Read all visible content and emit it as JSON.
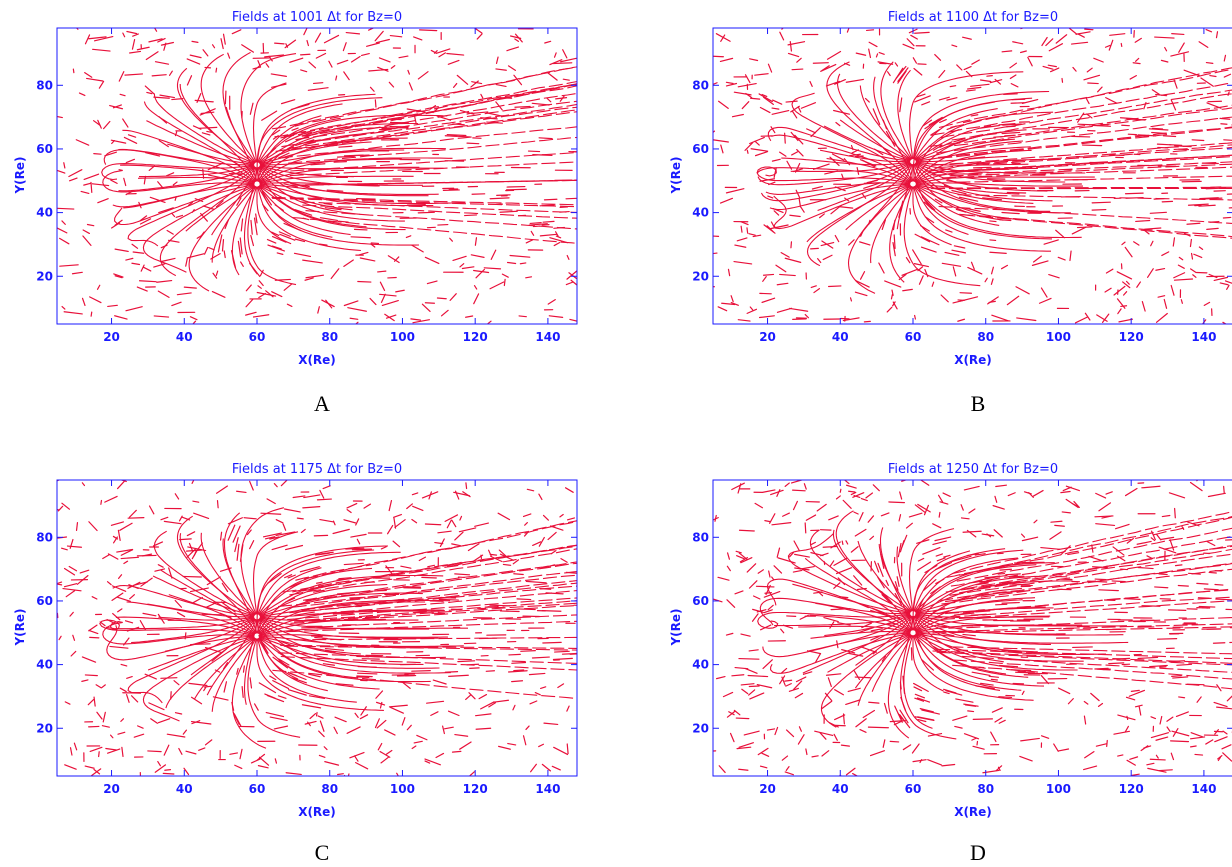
{
  "colors": {
    "axis": "#1a1aff",
    "field": "#e8103a",
    "caption": "#000000"
  },
  "chart_data": [
    {
      "type": "vector_field",
      "title": "Fields at 1001 Δt for Bz=0",
      "caption": "A",
      "xlabel": "X(Re)",
      "ylabel": "Y(Re)",
      "xlim": [
        5,
        148
      ],
      "ylim": [
        5,
        98
      ],
      "xticks": [
        20,
        40,
        60,
        80,
        100,
        120,
        140
      ],
      "yticks": [
        20,
        40,
        60,
        80
      ],
      "xtick_labels": [
        "20",
        "40",
        "60",
        "80",
        "100",
        "120",
        "140"
      ],
      "ytick_labels": [
        "20",
        "40",
        "60",
        "80"
      ],
      "nulls": [
        [
          60,
          55
        ],
        [
          60,
          49
        ]
      ],
      "seed": 1001,
      "strokes": 520
    },
    {
      "type": "vector_field",
      "title": "Fields at 1100 Δt for Bz=0",
      "caption": "B",
      "xlabel": "X(Re)",
      "ylabel": "Y(Re)",
      "xlim": [
        5,
        148
      ],
      "ylim": [
        5,
        98
      ],
      "xticks": [
        20,
        40,
        60,
        80,
        100,
        120,
        140
      ],
      "yticks": [
        20,
        40,
        60,
        80
      ],
      "xtick_labels": [
        "20",
        "40",
        "60",
        "80",
        "100",
        "120",
        "140"
      ],
      "ytick_labels": [
        "20",
        "40",
        "60",
        "80"
      ],
      "nulls": [
        [
          60,
          56
        ],
        [
          60,
          49
        ]
      ],
      "seed": 1100,
      "strokes": 560
    },
    {
      "type": "vector_field",
      "title": "Fields at 1175 Δt for Bz=0",
      "caption": "C",
      "xlabel": "X(Re)",
      "ylabel": "Y(Re)",
      "xlim": [
        5,
        148
      ],
      "ylim": [
        5,
        98
      ],
      "xticks": [
        20,
        40,
        60,
        80,
        100,
        120,
        140
      ],
      "yticks": [
        20,
        40,
        60,
        80
      ],
      "xtick_labels": [
        "20",
        "40",
        "60",
        "80",
        "100",
        "120",
        "140"
      ],
      "ytick_labels": [
        "20",
        "40",
        "60",
        "80"
      ],
      "nulls": [
        [
          60,
          55
        ],
        [
          60,
          49
        ]
      ],
      "seed": 1175,
      "strokes": 560
    },
    {
      "type": "vector_field",
      "title": "Fields at 1250 Δt for Bz=0",
      "caption": "D",
      "xlabel": "X(Re)",
      "ylabel": "Y(Re)",
      "xlim": [
        5,
        148
      ],
      "ylim": [
        5,
        98
      ],
      "xticks": [
        20,
        40,
        60,
        80,
        100,
        120,
        140
      ],
      "yticks": [
        20,
        40,
        60,
        80
      ],
      "xtick_labels": [
        "20",
        "40",
        "60",
        "80",
        "100",
        "120",
        "140"
      ],
      "ytick_labels": [
        "20",
        "40",
        "60",
        "80"
      ],
      "nulls": [
        [
          60,
          56
        ],
        [
          60,
          50
        ]
      ],
      "seed": 1250,
      "strokes": 600
    }
  ]
}
